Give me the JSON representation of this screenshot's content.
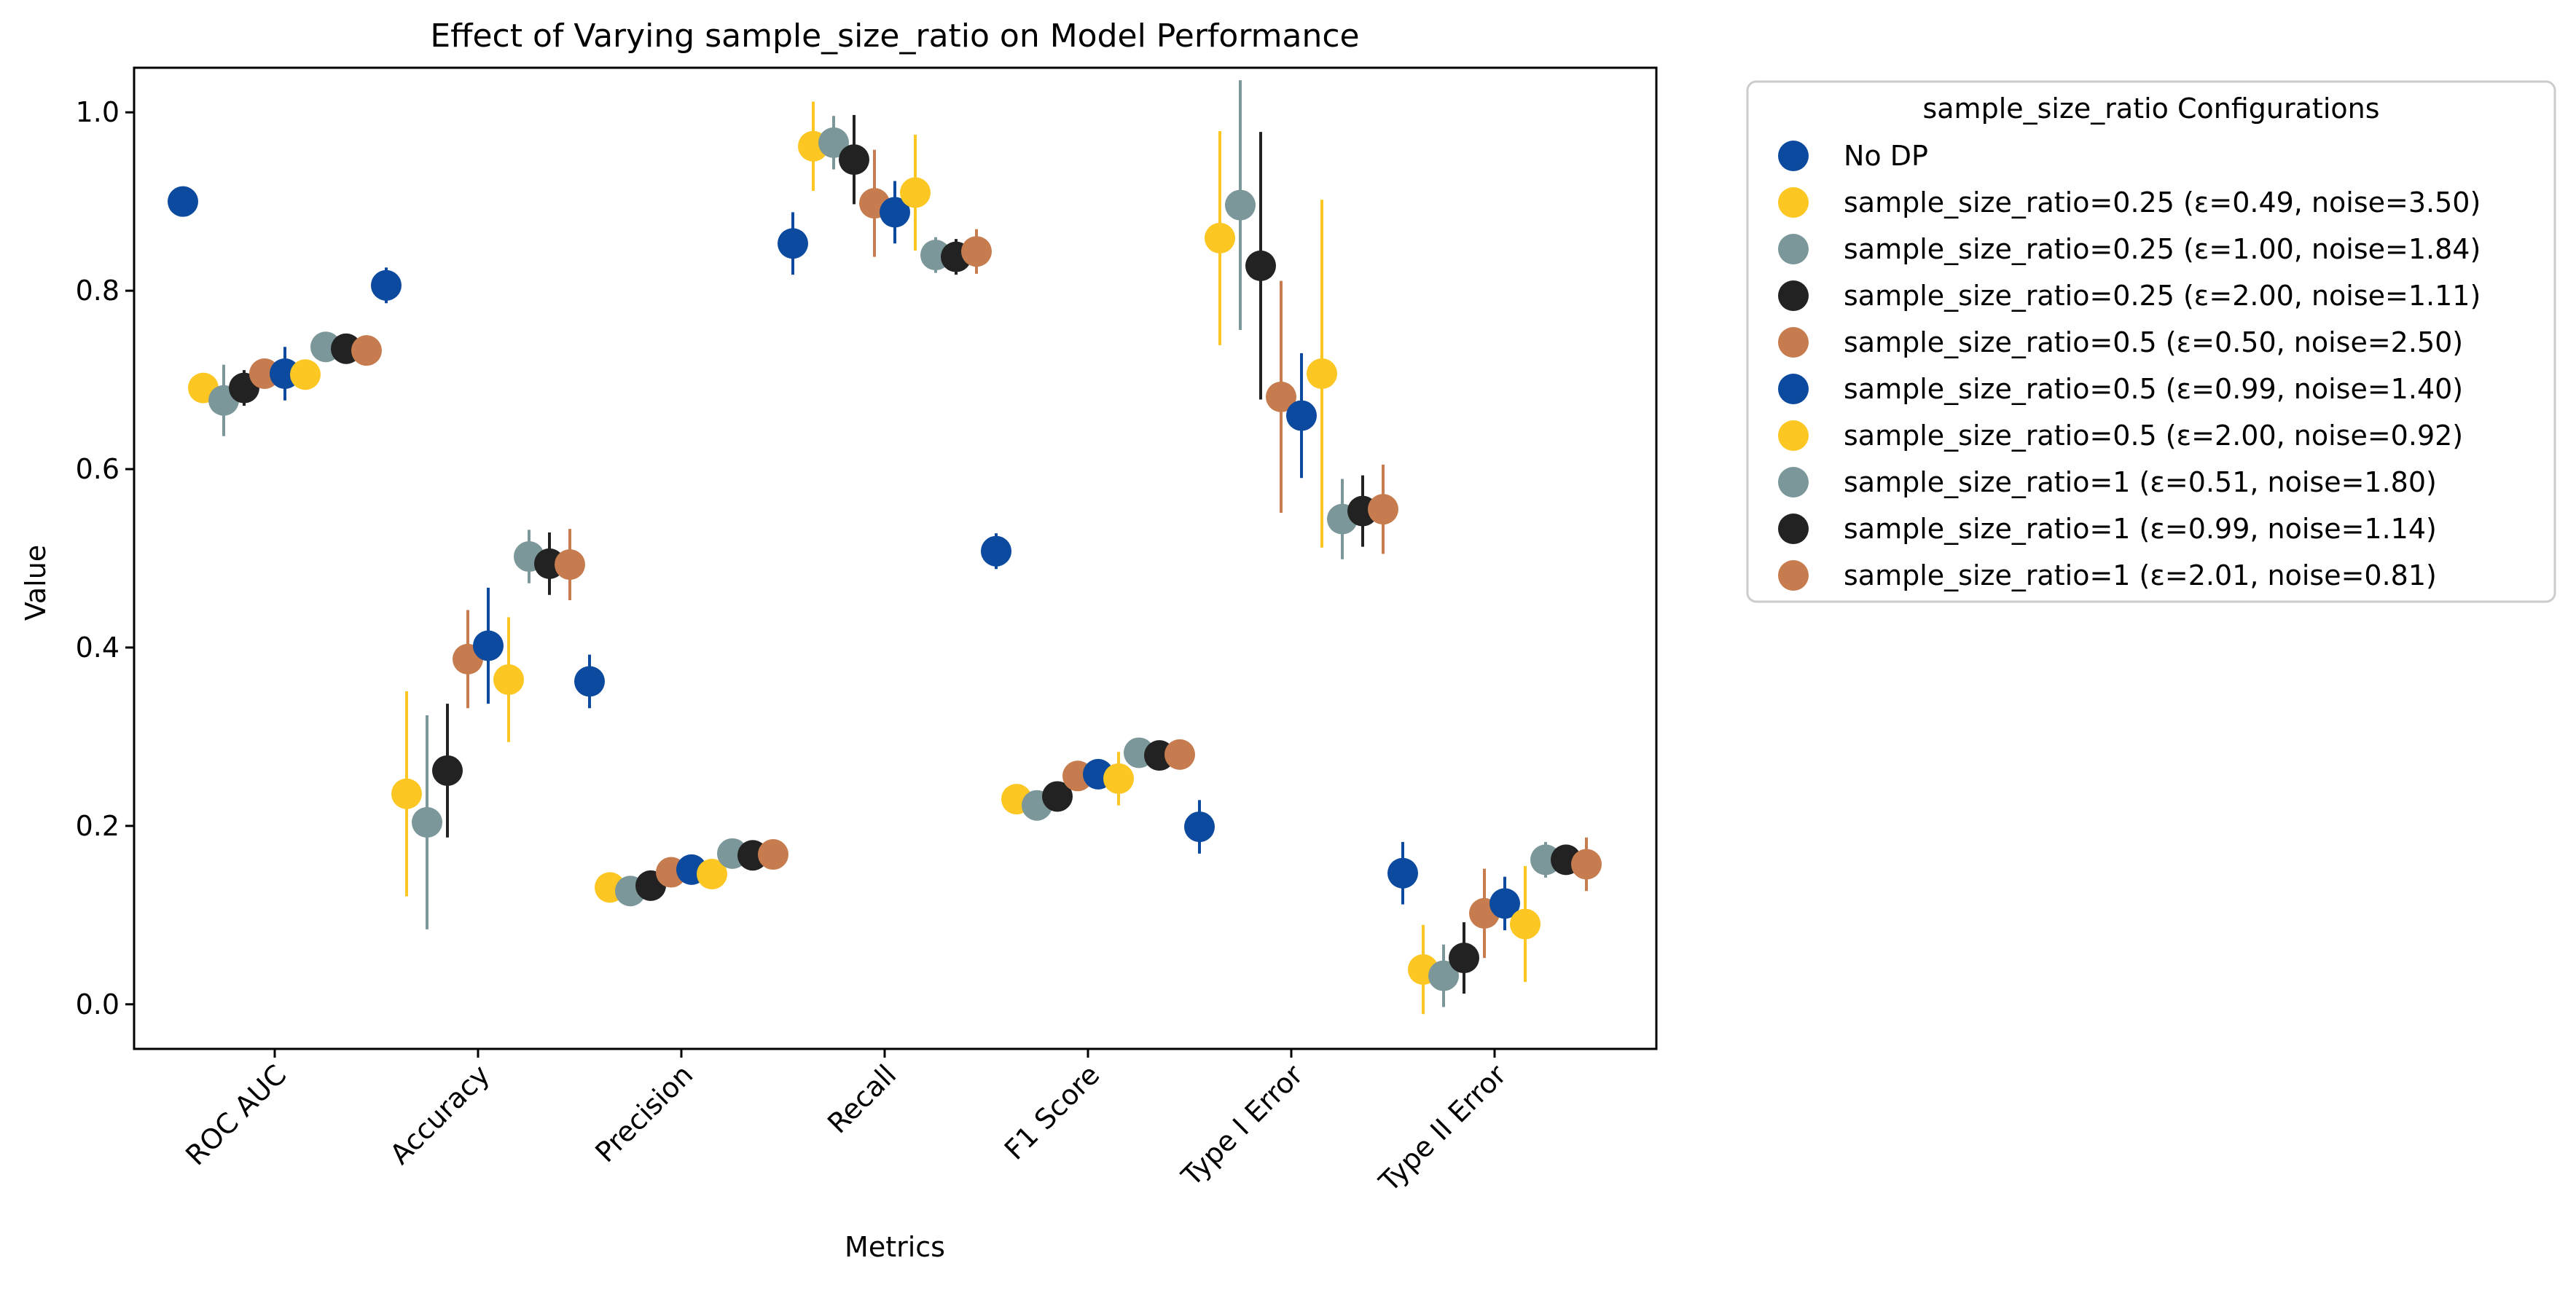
{
  "chart_data": {
    "type": "scatter",
    "title": "Effect of Varying sample_size_ratio on Model Performance",
    "xlabel": "Metrics",
    "ylabel": "Value",
    "ylim": [
      -0.05,
      1.05
    ],
    "yticks": [
      "0.0",
      "0.2",
      "0.4",
      "0.6",
      "0.8",
      "1.0"
    ],
    "grid": false,
    "legend_position": "outside-right",
    "legend_title": "sample_size_ratio Configurations",
    "categories": [
      "ROC AUC",
      "Accuracy",
      "Precision",
      "Recall",
      "F1 Score",
      "Type I Error",
      "Type II Error"
    ],
    "series": [
      {
        "name": "No DP",
        "color": "#0b4a9e",
        "values": [
          0.9,
          0.806,
          0.362,
          0.853,
          0.508,
          0.199,
          0.147
        ],
        "errors": [
          0.0,
          0.02,
          0.03,
          0.035,
          0.02,
          0.03,
          0.035
        ]
      },
      {
        "name": "sample_size_ratio=0.25 (ε=0.49, noise=3.50)",
        "color": "#fcc623",
        "values": [
          0.691,
          0.236,
          0.131,
          0.962,
          0.23,
          0.859,
          0.039
        ],
        "errors": [
          0.01,
          0.115,
          0.01,
          0.05,
          0.01,
          0.12,
          0.05
        ]
      },
      {
        "name": "sample_size_ratio=0.25 (ε=1.00, noise=1.84)",
        "color": "#7b979a",
        "values": [
          0.677,
          0.204,
          0.127,
          0.966,
          0.223,
          0.896,
          0.032
        ],
        "errors": [
          0.04,
          0.12,
          0.01,
          0.03,
          0.015,
          0.14,
          0.035
        ]
      },
      {
        "name": "sample_size_ratio=0.25 (ε=2.00, noise=1.11)",
        "color": "#222222",
        "values": [
          0.691,
          0.262,
          0.133,
          0.947,
          0.233,
          0.828,
          0.052
        ],
        "errors": [
          0.02,
          0.075,
          0.01,
          0.05,
          0.01,
          0.15,
          0.04
        ]
      },
      {
        "name": "sample_size_ratio=0.5 (ε=0.50, noise=2.50)",
        "color": "#c67c4e",
        "values": [
          0.707,
          0.387,
          0.148,
          0.898,
          0.256,
          0.681,
          0.102
        ],
        "errors": [
          0.01,
          0.055,
          0.01,
          0.06,
          0.01,
          0.13,
          0.05
        ]
      },
      {
        "name": "sample_size_ratio=0.5 (ε=0.99, noise=1.40)",
        "color": "#0b4a9e",
        "values": [
          0.707,
          0.402,
          0.151,
          0.888,
          0.258,
          0.66,
          0.113
        ],
        "errors": [
          0.03,
          0.065,
          0.01,
          0.035,
          0.01,
          0.07,
          0.03
        ]
      },
      {
        "name": "sample_size_ratio=0.5 (ε=2.00, noise=0.92)",
        "color": "#fcc623",
        "values": [
          0.706,
          0.364,
          0.146,
          0.91,
          0.253,
          0.707,
          0.09
        ],
        "errors": [
          0.01,
          0.07,
          0.01,
          0.065,
          0.03,
          0.195,
          0.065
        ]
      },
      {
        "name": "sample_size_ratio=1 (ε=0.51, noise=1.80)",
        "color": "#7b979a",
        "values": [
          0.737,
          0.502,
          0.169,
          0.84,
          0.282,
          0.544,
          0.162
        ],
        "errors": [
          0.01,
          0.03,
          0.01,
          0.02,
          0.01,
          0.045,
          0.02
        ]
      },
      {
        "name": "sample_size_ratio=1 (ε=0.99, noise=1.14)",
        "color": "#222222",
        "values": [
          0.735,
          0.494,
          0.167,
          0.838,
          0.279,
          0.553,
          0.162
        ],
        "errors": [
          0.01,
          0.035,
          0.01,
          0.02,
          0.01,
          0.04,
          0.015
        ]
      },
      {
        "name": "sample_size_ratio=1 (ε=2.01, noise=0.81)",
        "color": "#c67c4e",
        "values": [
          0.733,
          0.493,
          0.168,
          0.844,
          0.28,
          0.555,
          0.157
        ],
        "errors": [
          0.01,
          0.04,
          0.01,
          0.025,
          0.01,
          0.05,
          0.03
        ]
      }
    ]
  }
}
